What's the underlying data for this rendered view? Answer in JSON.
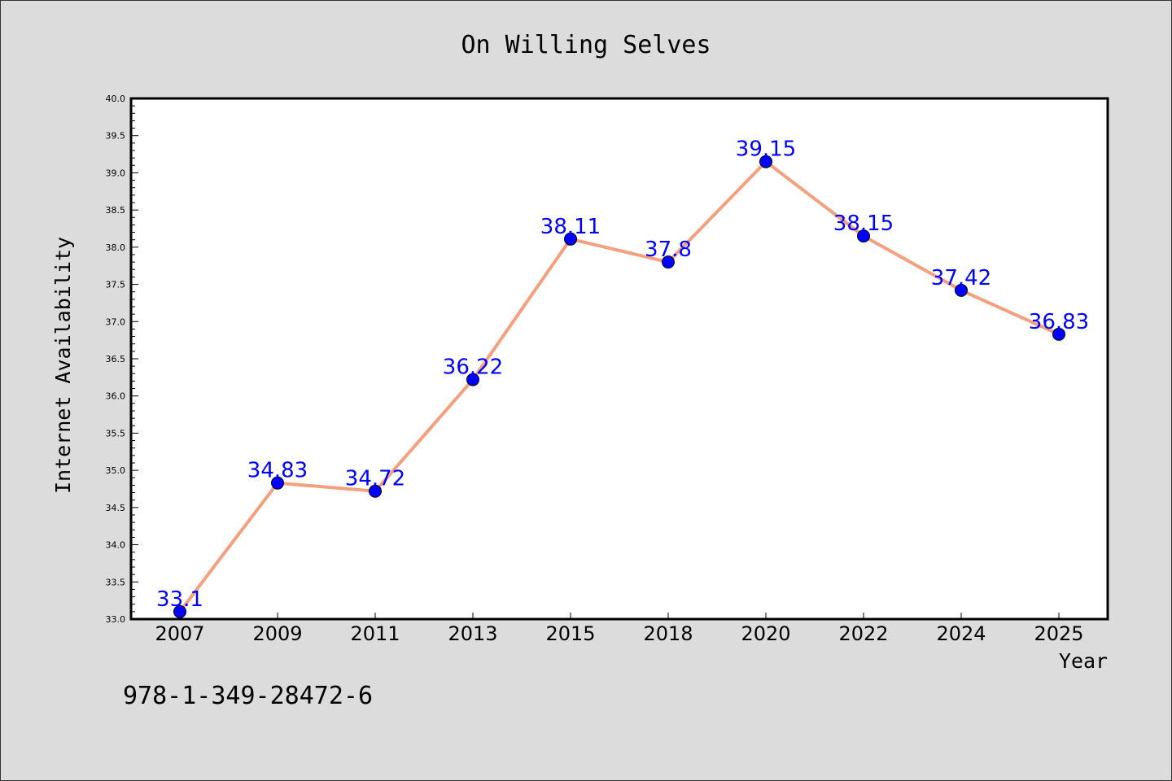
{
  "chart_data": {
    "type": "line",
    "title": "On Willing Selves",
    "xlabel": "Year",
    "ylabel": "Internet Availability",
    "categories": [
      "2007",
      "2009",
      "2011",
      "2013",
      "2015",
      "2018",
      "2020",
      "2022",
      "2024",
      "2025"
    ],
    "series": [
      {
        "values": [
          33.1,
          34.83,
          34.72,
          36.22,
          38.11,
          37.8,
          39.15,
          38.15,
          37.42,
          36.83
        ],
        "data_labels": [
          "33.1",
          "34.83",
          "34.72",
          "36.22",
          "38.11",
          "37.8",
          "39.15",
          "38.15",
          "37.42",
          "36.83"
        ],
        "line_color": "#f4a07e",
        "marker_color": "#0000ff"
      }
    ],
    "ylim": [
      33.0,
      40.0
    ],
    "yticks": [
      "33.0",
      "33.5",
      "34.0",
      "34.5",
      "35.0",
      "35.5",
      "36.0",
      "36.5",
      "37.0",
      "37.5",
      "38.0",
      "38.5",
      "39.0",
      "39.5",
      "40.0"
    ],
    "grid": false,
    "legend": "none"
  },
  "footer": {
    "isbn": "978-1-349-28472-6"
  }
}
